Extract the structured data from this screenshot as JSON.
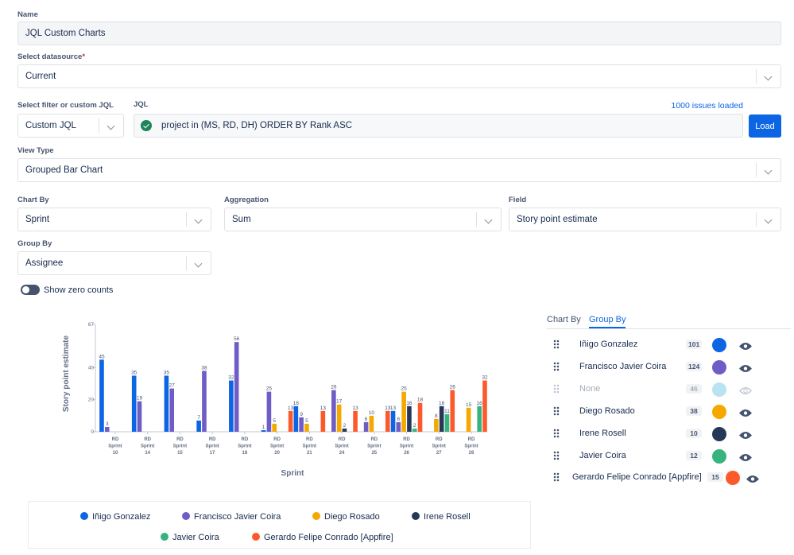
{
  "form": {
    "name": {
      "label": "Name",
      "value": "JQL Custom Charts"
    },
    "datasource": {
      "label": "Select datasource",
      "required": "*",
      "value": "Current"
    },
    "filter": {
      "label": "Select filter or custom JQL",
      "value": "Custom JQL"
    },
    "jql": {
      "label": "JQL",
      "value": "project in (MS, RD, DH) ORDER BY Rank ASC",
      "status": "1000 issues loaded",
      "button": "Load"
    },
    "view_type": {
      "label": "View Type",
      "value": "Grouped Bar Chart"
    },
    "chart_by": {
      "label": "Chart By",
      "value": "Sprint"
    },
    "aggregation": {
      "label": "Aggregation",
      "value": "Sum"
    },
    "field": {
      "label": "Field",
      "value": "Story point estimate"
    },
    "group_by": {
      "label": "Group By",
      "value": "Assignee"
    },
    "toggle": {
      "label": "Show zero counts",
      "on": false
    }
  },
  "panel": {
    "tabs": [
      "Chart By",
      "Group By"
    ],
    "active_tab": 1,
    "rows": [
      {
        "name": "Iñigo Gonzalez",
        "count": 101,
        "color": "#0c66e4",
        "visible": true
      },
      {
        "name": "Francisco Javier Coira",
        "count": 124,
        "color": "#6e5dc6",
        "visible": true
      },
      {
        "name": "None",
        "count": 46,
        "color": "#b9e3f0",
        "visible": false
      },
      {
        "name": "Diego Rosado",
        "count": 38,
        "color": "#f5a800",
        "visible": true
      },
      {
        "name": "Irene Rosell",
        "count": 10,
        "color": "#253858",
        "visible": true
      },
      {
        "name": "Javier Coira",
        "count": 12,
        "color": "#36b37e",
        "visible": true
      },
      {
        "name": "Gerardo Felipe Conrado [Appfire]",
        "count": 15,
        "color": "#fc5a2c",
        "visible": true
      }
    ]
  },
  "chart_data": {
    "type": "grouped-bar",
    "x_label": "Sprint",
    "y_label": "Story point estimate",
    "categories": [
      "RD Sprint 10",
      "RD Sprint 14",
      "RD Sprint 15",
      "RD Sprint 17",
      "RD Sprint 18",
      "RD Sprint 20",
      "RD Sprint 21",
      "RD Sprint 24",
      "RD Sprint 25",
      "RD Sprint 26",
      "RD Sprint 27",
      "RD Sprint 28"
    ],
    "ylim": [
      0,
      67
    ],
    "yticks": [
      0,
      20,
      40,
      67
    ],
    "series": [
      {
        "name": "Iñigo Gonzalez",
        "color": "#0c66e4",
        "values": [
          45,
          35,
          35,
          7,
          32,
          1,
          16,
          null,
          null,
          13,
          null,
          null
        ]
      },
      {
        "name": "Francisco Javier Coira",
        "color": "#6e5dc6",
        "values": [
          3,
          19,
          27,
          38,
          56,
          25,
          9,
          26,
          6,
          6,
          null,
          null
        ]
      },
      {
        "name": "Diego Rosado",
        "color": "#f5a800",
        "values": [
          null,
          null,
          null,
          null,
          null,
          5,
          5,
          17,
          10,
          25,
          8,
          15
        ]
      },
      {
        "name": "Irene Rosell",
        "color": "#253858",
        "values": [
          null,
          null,
          null,
          null,
          null,
          null,
          null,
          2,
          null,
          16,
          16,
          null
        ]
      },
      {
        "name": "Javier Coira",
        "color": "#36b37e",
        "values": [
          null,
          null,
          null,
          null,
          null,
          null,
          null,
          null,
          null,
          2,
          11,
          16
        ]
      },
      {
        "name": "Gerardo Felipe Conrado [Appfire]",
        "color": "#fc5a2c",
        "values": [
          null,
          null,
          null,
          null,
          null,
          13,
          13,
          13,
          13,
          18,
          26,
          32
        ]
      }
    ]
  }
}
